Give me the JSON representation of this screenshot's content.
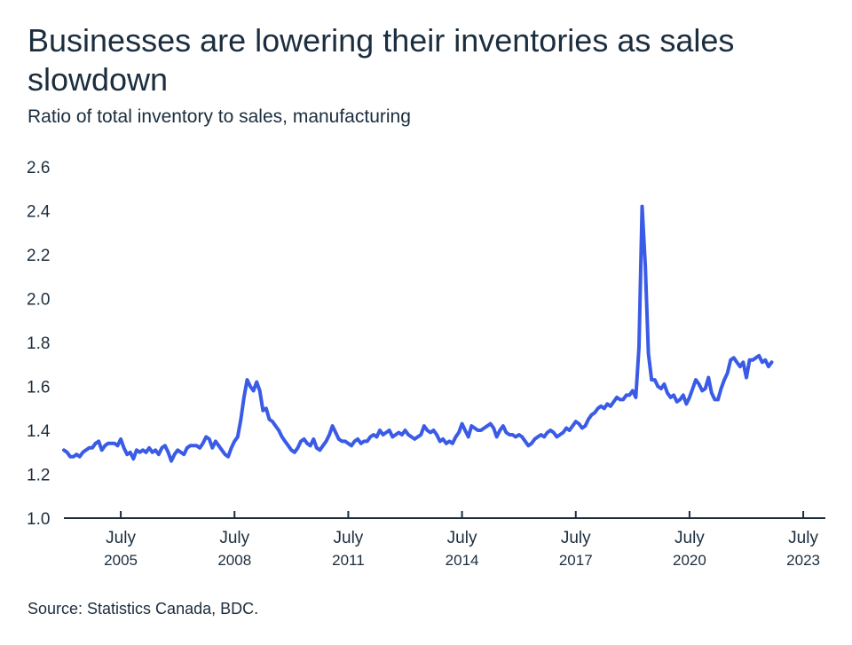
{
  "title": "Businesses are lowering their inventories as sales slowdown",
  "subtitle": "Ratio of total inventory to sales, manufacturing",
  "source": "Source: Statistics Canada, BDC.",
  "colors": {
    "line": "#3a5be6",
    "axis": "#1b2d3e",
    "text": "#1b2d3e"
  },
  "chart_data": {
    "type": "line",
    "title": "Businesses are lowering their inventories as sales slowdown",
    "subtitle": "Ratio of total inventory to sales, manufacturing",
    "xlabel": "",
    "ylabel": "",
    "ylim": [
      1.0,
      2.6
    ],
    "xlim": [
      "2004-01",
      "2024-02"
    ],
    "grid": false,
    "legend": "none",
    "yticks": [
      "1.0",
      "1.2",
      "1.4",
      "1.6",
      "1.8",
      "2.0",
      "2.2",
      "2.4",
      "2.6"
    ],
    "xticks": [
      {
        "x": "2005-07",
        "month": "July",
        "year": "2005"
      },
      {
        "x": "2008-07",
        "month": "July",
        "year": "2008"
      },
      {
        "x": "2011-07",
        "month": "July",
        "year": "2011"
      },
      {
        "x": "2014-07",
        "month": "July",
        "year": "2014"
      },
      {
        "x": "2017-07",
        "month": "July",
        "year": "2017"
      },
      {
        "x": "2020-07",
        "month": "July",
        "year": "2020"
      },
      {
        "x": "2023-07",
        "month": "July",
        "year": "2023"
      }
    ],
    "series": [
      {
        "start": "2004-01",
        "frequency": "monthly",
        "values": [
          1.31,
          1.3,
          1.28,
          1.28,
          1.29,
          1.28,
          1.3,
          1.31,
          1.32,
          1.32,
          1.34,
          1.35,
          1.31,
          1.33,
          1.34,
          1.34,
          1.34,
          1.33,
          1.36,
          1.32,
          1.29,
          1.3,
          1.27,
          1.31,
          1.3,
          1.31,
          1.3,
          1.32,
          1.3,
          1.31,
          1.29,
          1.32,
          1.33,
          1.3,
          1.26,
          1.29,
          1.31,
          1.3,
          1.29,
          1.32,
          1.33,
          1.33,
          1.33,
          1.32,
          1.34,
          1.37,
          1.36,
          1.32,
          1.35,
          1.33,
          1.31,
          1.29,
          1.28,
          1.32,
          1.35,
          1.37,
          1.45,
          1.55,
          1.63,
          1.6,
          1.58,
          1.62,
          1.58,
          1.49,
          1.5,
          1.45,
          1.44,
          1.42,
          1.4,
          1.37,
          1.35,
          1.33,
          1.31,
          1.3,
          1.32,
          1.35,
          1.36,
          1.34,
          1.33,
          1.36,
          1.32,
          1.31,
          1.33,
          1.35,
          1.38,
          1.42,
          1.39,
          1.36,
          1.35,
          1.35,
          1.34,
          1.33,
          1.35,
          1.36,
          1.34,
          1.35,
          1.35,
          1.37,
          1.38,
          1.37,
          1.4,
          1.38,
          1.39,
          1.4,
          1.37,
          1.38,
          1.39,
          1.38,
          1.4,
          1.38,
          1.37,
          1.36,
          1.37,
          1.38,
          1.42,
          1.4,
          1.39,
          1.4,
          1.38,
          1.35,
          1.36,
          1.34,
          1.35,
          1.34,
          1.37,
          1.39,
          1.43,
          1.4,
          1.37,
          1.42,
          1.41,
          1.4,
          1.4,
          1.41,
          1.42,
          1.43,
          1.41,
          1.37,
          1.4,
          1.42,
          1.39,
          1.38,
          1.38,
          1.37,
          1.38,
          1.37,
          1.35,
          1.33,
          1.34,
          1.36,
          1.37,
          1.38,
          1.37,
          1.39,
          1.4,
          1.39,
          1.37,
          1.38,
          1.39,
          1.41,
          1.4,
          1.42,
          1.44,
          1.43,
          1.41,
          1.42,
          1.45,
          1.47,
          1.48,
          1.5,
          1.51,
          1.5,
          1.52,
          1.51,
          1.53,
          1.55,
          1.54,
          1.54,
          1.56,
          1.56,
          1.58,
          1.55,
          1.78,
          2.42,
          2.15,
          1.75,
          1.63,
          1.63,
          1.6,
          1.59,
          1.61,
          1.57,
          1.55,
          1.56,
          1.53,
          1.54,
          1.56,
          1.52,
          1.55,
          1.59,
          1.63,
          1.61,
          1.58,
          1.59,
          1.64,
          1.57,
          1.54,
          1.54,
          1.59,
          1.63,
          1.66,
          1.72,
          1.73,
          1.71,
          1.69,
          1.71,
          1.64,
          1.72,
          1.72,
          1.73,
          1.74,
          1.71,
          1.72,
          1.69,
          1.71
        ]
      }
    ]
  }
}
